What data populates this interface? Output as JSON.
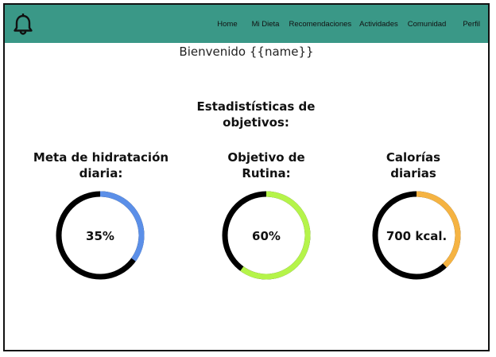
{
  "colors": {
    "navbar": "#3a9887",
    "ring_track": "#000000",
    "hydration": "#5b8fe8",
    "routine": "#b5f44a",
    "calories": "#f5b342"
  },
  "navbar": {
    "bell_icon": "bell-icon",
    "links": [
      {
        "label": "Home"
      },
      {
        "label": "Mi Dieta"
      },
      {
        "label": "Recomendaciones"
      },
      {
        "label": "Actividades"
      },
      {
        "label": "Comunidad"
      },
      {
        "label": "Perfil"
      }
    ]
  },
  "main": {
    "welcome": "Bienvenido {{name}}",
    "section_title_line1": "Estadistísticas de",
    "section_title_line2": "objetivos:",
    "stats": [
      {
        "title_line1": "Meta de hidratación",
        "title_line2": "diaria:",
        "value_label": "35%",
        "progress": 0.35,
        "color_key": "hydration"
      },
      {
        "title_line1": "Objetivo de",
        "title_line2": "Rutina:",
        "value_label": "60%",
        "progress": 0.6,
        "color_key": "routine"
      },
      {
        "title_line1": "Calorías",
        "title_line2": "diarias",
        "value_label": "700 kcal.",
        "progress": 0.38,
        "color_key": "calories"
      }
    ]
  }
}
